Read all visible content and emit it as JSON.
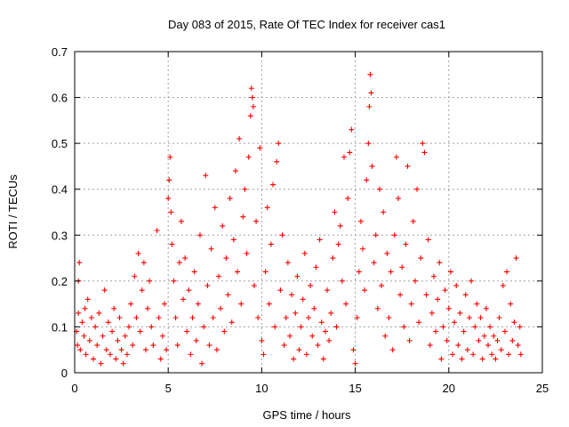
{
  "chart_data": {
    "type": "scatter",
    "title": "Day 083 of 2015, Rate Of TEC Index for receiver cas1",
    "xlabel": "GPS time / hours",
    "ylabel": "ROTI / TECUs",
    "xlim": [
      0,
      25
    ],
    "ylim": [
      0,
      0.7
    ],
    "xticks": [
      0,
      5,
      10,
      15,
      20,
      25
    ],
    "yticks": [
      0,
      0.1,
      0.2,
      0.3,
      0.4,
      0.5,
      0.6,
      0.7
    ],
    "xtick_labels": [
      "0",
      "5",
      "10",
      "15",
      "20",
      "25"
    ],
    "ytick_labels": [
      "0",
      "0.1",
      "0.2",
      "0.3",
      "0.4",
      "0.5",
      "0.6",
      "0.7"
    ],
    "grid": true,
    "marker": "+",
    "color": "#ff0000",
    "series": [
      {
        "name": "cas1",
        "points": [
          [
            0.1,
            0.09
          ],
          [
            0.15,
            0.06
          ],
          [
            0.2,
            0.13
          ],
          [
            0.2,
            0.2
          ],
          [
            0.25,
            0.24
          ],
          [
            0.3,
            0.05
          ],
          [
            0.4,
            0.11
          ],
          [
            0.5,
            0.08
          ],
          [
            0.55,
            0.14
          ],
          [
            0.6,
            0.04
          ],
          [
            0.7,
            0.16
          ],
          [
            0.8,
            0.07
          ],
          [
            0.9,
            0.12
          ],
          [
            1.0,
            0.03
          ],
          [
            1.1,
            0.1
          ],
          [
            1.2,
            0.06
          ],
          [
            1.3,
            0.13
          ],
          [
            1.4,
            0.02
          ],
          [
            1.5,
            0.08
          ],
          [
            1.6,
            0.18
          ],
          [
            1.7,
            0.05
          ],
          [
            1.8,
            0.11
          ],
          [
            1.9,
            0.04
          ],
          [
            2.0,
            0.09
          ],
          [
            2.1,
            0.14
          ],
          [
            2.2,
            0.03
          ],
          [
            2.3,
            0.07
          ],
          [
            2.4,
            0.12
          ],
          [
            2.5,
            0.05
          ],
          [
            2.6,
            0.02
          ],
          [
            2.7,
            0.08
          ],
          [
            2.8,
            0.04
          ],
          [
            2.9,
            0.1
          ],
          [
            3.0,
            0.15
          ],
          [
            3.1,
            0.06
          ],
          [
            3.2,
            0.21
          ],
          [
            3.3,
            0.12
          ],
          [
            3.4,
            0.26
          ],
          [
            3.5,
            0.09
          ],
          [
            3.6,
            0.18
          ],
          [
            3.7,
            0.24
          ],
          [
            3.8,
            0.05
          ],
          [
            3.9,
            0.14
          ],
          [
            4.0,
            0.2
          ],
          [
            4.1,
            0.1
          ],
          [
            4.2,
            0.06
          ],
          [
            4.4,
            0.31
          ],
          [
            4.5,
            0.12
          ],
          [
            4.6,
            0.03
          ],
          [
            4.7,
            0.08
          ],
          [
            4.8,
            0.15
          ],
          [
            4.9,
            0.05
          ],
          [
            5.0,
            0.38
          ],
          [
            5.05,
            0.42
          ],
          [
            5.1,
            0.47
          ],
          [
            5.15,
            0.35
          ],
          [
            5.2,
            0.28
          ],
          [
            5.3,
            0.2
          ],
          [
            5.4,
            0.12
          ],
          [
            5.5,
            0.06
          ],
          [
            5.6,
            0.24
          ],
          [
            5.7,
            0.33
          ],
          [
            5.8,
            0.16
          ],
          [
            5.9,
            0.25
          ],
          [
            6.0,
            0.09
          ],
          [
            6.1,
            0.18
          ],
          [
            6.2,
            0.04
          ],
          [
            6.3,
            0.12
          ],
          [
            6.4,
            0.22
          ],
          [
            6.5,
            0.07
          ],
          [
            6.6,
            0.15
          ],
          [
            6.7,
            0.3
          ],
          [
            6.8,
            0.02
          ],
          [
            6.9,
            0.1
          ],
          [
            7.0,
            0.43
          ],
          [
            7.1,
            0.19
          ],
          [
            7.2,
            0.06
          ],
          [
            7.3,
            0.27
          ],
          [
            7.4,
            0.12
          ],
          [
            7.5,
            0.36
          ],
          [
            7.6,
            0.05
          ],
          [
            7.7,
            0.21
          ],
          [
            7.8,
            0.14
          ],
          [
            7.9,
            0.32
          ],
          [
            8.0,
            0.09
          ],
          [
            8.1,
            0.25
          ],
          [
            8.2,
            0.17
          ],
          [
            8.3,
            0.38
          ],
          [
            8.4,
            0.11
          ],
          [
            8.5,
            0.29
          ],
          [
            8.6,
            0.44
          ],
          [
            8.7,
            0.22
          ],
          [
            8.8,
            0.51
          ],
          [
            8.9,
            0.15
          ],
          [
            9.0,
            0.34
          ],
          [
            9.1,
            0.4
          ],
          [
            9.2,
            0.26
          ],
          [
            9.3,
            0.47
          ],
          [
            9.4,
            0.56
          ],
          [
            9.45,
            0.62
          ],
          [
            9.5,
            0.6
          ],
          [
            9.55,
            0.58
          ],
          [
            9.6,
            0.19
          ],
          [
            9.7,
            0.33
          ],
          [
            9.8,
            0.12
          ],
          [
            9.9,
            0.49
          ],
          [
            10.0,
            0.07
          ],
          [
            10.1,
            0.04
          ],
          [
            10.2,
            0.22
          ],
          [
            10.3,
            0.36
          ],
          [
            10.4,
            0.15
          ],
          [
            10.5,
            0.28
          ],
          [
            10.6,
            0.41
          ],
          [
            10.7,
            0.1
          ],
          [
            10.8,
            0.46
          ],
          [
            10.9,
            0.5
          ],
          [
            11.0,
            0.18
          ],
          [
            11.1,
            0.3
          ],
          [
            11.2,
            0.06
          ],
          [
            11.3,
            0.12
          ],
          [
            11.4,
            0.24
          ],
          [
            11.5,
            0.08
          ],
          [
            11.6,
            0.17
          ],
          [
            11.7,
            0.03
          ],
          [
            11.8,
            0.13
          ],
          [
            11.9,
            0.21
          ],
          [
            12.0,
            0.05
          ],
          [
            12.1,
            0.1
          ],
          [
            12.2,
            0.16
          ],
          [
            12.3,
            0.26
          ],
          [
            12.4,
            0.04
          ],
          [
            12.5,
            0.12
          ],
          [
            12.6,
            0.19
          ],
          [
            12.7,
            0.08
          ],
          [
            12.8,
            0.14
          ],
          [
            12.9,
            0.23
          ],
          [
            13.0,
            0.06
          ],
          [
            13.1,
            0.29
          ],
          [
            13.2,
            0.11
          ],
          [
            13.3,
            0.03
          ],
          [
            13.4,
            0.09
          ],
          [
            13.5,
            0.18
          ],
          [
            13.6,
            0.07
          ],
          [
            13.7,
            0.13
          ],
          [
            13.8,
            0.25
          ],
          [
            13.9,
            0.35
          ],
          [
            14.0,
            0.1
          ],
          [
            14.1,
            0.28
          ],
          [
            14.2,
            0.32
          ],
          [
            14.3,
            0.2
          ],
          [
            14.4,
            0.47
          ],
          [
            14.5,
            0.15
          ],
          [
            14.6,
            0.38
          ],
          [
            14.7,
            0.48
          ],
          [
            14.8,
            0.53
          ],
          [
            14.9,
            0.05
          ],
          [
            15.0,
            0.02
          ],
          [
            15.1,
            0.12
          ],
          [
            15.2,
            0.22
          ],
          [
            15.3,
            0.33
          ],
          [
            15.4,
            0.27
          ],
          [
            15.5,
            0.18
          ],
          [
            15.6,
            0.42
          ],
          [
            15.7,
            0.5
          ],
          [
            15.75,
            0.58
          ],
          [
            15.8,
            0.65
          ],
          [
            15.85,
            0.61
          ],
          [
            15.9,
            0.45
          ],
          [
            16.0,
            0.24
          ],
          [
            16.1,
            0.3
          ],
          [
            16.2,
            0.14
          ],
          [
            16.3,
            0.4
          ],
          [
            16.4,
            0.19
          ],
          [
            16.5,
            0.35
          ],
          [
            16.6,
            0.08
          ],
          [
            16.7,
            0.26
          ],
          [
            16.8,
            0.12
          ],
          [
            16.9,
            0.22
          ],
          [
            17.0,
            0.05
          ],
          [
            17.1,
            0.3
          ],
          [
            17.2,
            0.47
          ],
          [
            17.3,
            0.38
          ],
          [
            17.4,
            0.17
          ],
          [
            17.5,
            0.23
          ],
          [
            17.6,
            0.1
          ],
          [
            17.7,
            0.28
          ],
          [
            17.8,
            0.45
          ],
          [
            17.9,
            0.07
          ],
          [
            18.0,
            0.15
          ],
          [
            18.1,
            0.33
          ],
          [
            18.2,
            0.2
          ],
          [
            18.3,
            0.4
          ],
          [
            18.4,
            0.11
          ],
          [
            18.5,
            0.25
          ],
          [
            18.6,
            0.5
          ],
          [
            18.7,
            0.48
          ],
          [
            18.8,
            0.17
          ],
          [
            18.9,
            0.29
          ],
          [
            19.0,
            0.06
          ],
          [
            19.1,
            0.13
          ],
          [
            19.2,
            0.21
          ],
          [
            19.3,
            0.09
          ],
          [
            19.4,
            0.16
          ],
          [
            19.5,
            0.24
          ],
          [
            19.6,
            0.03
          ],
          [
            19.7,
            0.1
          ],
          [
            19.8,
            0.18
          ],
          [
            19.9,
            0.07
          ],
          [
            20.0,
            0.14
          ],
          [
            20.1,
            0.22
          ],
          [
            20.2,
            0.04
          ],
          [
            20.3,
            0.11
          ],
          [
            20.4,
            0.19
          ],
          [
            20.5,
            0.06
          ],
          [
            20.6,
            0.13
          ],
          [
            20.7,
            0.03
          ],
          [
            20.8,
            0.09
          ],
          [
            20.9,
            0.17
          ],
          [
            21.0,
            0.05
          ],
          [
            21.1,
            0.12
          ],
          [
            21.2,
            0.2
          ],
          [
            21.3,
            0.04
          ],
          [
            21.4,
            0.1
          ],
          [
            21.5,
            0.15
          ],
          [
            21.6,
            0.07
          ],
          [
            21.7,
            0.12
          ],
          [
            21.8,
            0.03
          ],
          [
            21.9,
            0.08
          ],
          [
            22.0,
            0.14
          ],
          [
            22.1,
            0.06
          ],
          [
            22.2,
            0.1
          ],
          [
            22.3,
            0.04
          ],
          [
            22.4,
            0.08
          ],
          [
            22.5,
            0.03
          ],
          [
            22.6,
            0.07
          ],
          [
            22.7,
            0.12
          ],
          [
            22.8,
            0.05
          ],
          [
            22.9,
            0.19
          ],
          [
            23.0,
            0.09
          ],
          [
            23.1,
            0.22
          ],
          [
            23.2,
            0.04
          ],
          [
            23.3,
            0.15
          ],
          [
            23.4,
            0.07
          ],
          [
            23.5,
            0.11
          ],
          [
            23.6,
            0.25
          ],
          [
            23.7,
            0.06
          ],
          [
            23.8,
            0.1
          ],
          [
            23.85,
            0.04
          ]
        ]
      }
    ]
  }
}
